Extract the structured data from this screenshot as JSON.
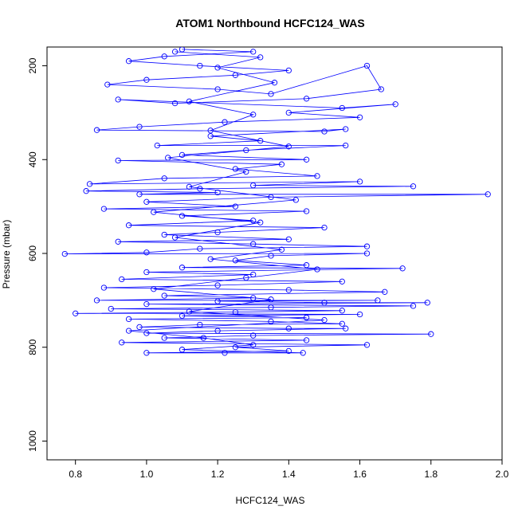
{
  "chart_data": {
    "type": "scatter",
    "title": "ATOM1 Northbound HCFC124_WAS",
    "xlabel": "HCFC124_WAS",
    "ylabel": "Pressure (mbar)",
    "xlim": [
      0.72,
      2.0
    ],
    "ylim": [
      1040,
      160
    ],
    "y_reversed": true,
    "x_ticks": [
      "0.8",
      "1.0",
      "1.2",
      "1.4",
      "1.6",
      "1.8",
      "2.0"
    ],
    "y_ticks": [
      "200",
      "400",
      "600",
      "800",
      "1000"
    ],
    "grid": false,
    "legend": "none",
    "series_color": "#0000ff",
    "point_style": "open-circle-connected",
    "series": [
      {
        "values": [
          [
            1.1,
            165
          ],
          [
            1.3,
            170
          ],
          [
            1.05,
            180
          ],
          [
            0.95,
            190
          ],
          [
            1.15,
            200
          ],
          [
            1.4,
            210
          ],
          [
            1.25,
            220
          ],
          [
            1.0,
            230
          ],
          [
            0.89,
            240
          ],
          [
            1.2,
            250
          ],
          [
            1.35,
            260
          ],
          [
            1.62,
            200
          ],
          [
            1.66,
            250
          ],
          [
            1.45,
            270
          ],
          [
            1.08,
            280
          ],
          [
            0.92,
            272
          ],
          [
            1.55,
            290
          ],
          [
            1.7,
            282
          ],
          [
            1.4,
            300
          ],
          [
            1.6,
            310
          ],
          [
            1.22,
            320
          ],
          [
            0.98,
            330
          ],
          [
            0.86,
            337
          ],
          [
            1.5,
            340
          ],
          [
            1.56,
            335
          ],
          [
            1.18,
            350
          ],
          [
            1.32,
            360
          ],
          [
            1.03,
            370
          ],
          [
            1.56,
            370
          ],
          [
            1.28,
            380
          ],
          [
            1.1,
            390
          ],
          [
            1.45,
            400
          ],
          [
            0.92,
            402
          ],
          [
            1.38,
            410
          ],
          [
            1.25,
            420
          ],
          [
            1.48,
            435
          ],
          [
            1.05,
            440
          ],
          [
            0.84,
            452
          ],
          [
            1.6,
            447
          ],
          [
            1.3,
            455
          ],
          [
            1.75,
            457
          ],
          [
            1.15,
            462
          ],
          [
            0.83,
            467
          ],
          [
            1.2,
            470
          ],
          [
            0.98,
            474
          ],
          [
            1.96,
            474
          ],
          [
            1.35,
            480
          ],
          [
            1.0,
            490
          ],
          [
            1.25,
            500
          ],
          [
            0.88,
            505
          ],
          [
            1.45,
            510
          ],
          [
            1.1,
            520
          ],
          [
            1.3,
            530
          ],
          [
            0.95,
            540
          ],
          [
            1.5,
            545
          ],
          [
            1.2,
            555
          ],
          [
            1.05,
            560
          ],
          [
            1.4,
            570
          ],
          [
            0.92,
            575
          ],
          [
            1.3,
            580
          ],
          [
            1.62,
            585
          ],
          [
            1.15,
            590
          ],
          [
            1.0,
            598
          ],
          [
            0.77,
            601
          ],
          [
            1.62,
            600
          ],
          [
            1.35,
            605
          ],
          [
            1.25,
            615
          ],
          [
            1.45,
            625
          ],
          [
            1.1,
            630
          ],
          [
            1.72,
            632
          ],
          [
            1.0,
            640
          ],
          [
            1.3,
            645
          ],
          [
            0.93,
            655
          ],
          [
            1.55,
            660
          ],
          [
            1.2,
            668
          ],
          [
            0.88,
            673
          ],
          [
            1.4,
            678
          ],
          [
            1.67,
            682
          ],
          [
            1.05,
            690
          ],
          [
            1.3,
            695
          ],
          [
            0.86,
            700
          ],
          [
            1.65,
            700
          ],
          [
            1.2,
            702
          ],
          [
            1.5,
            705
          ],
          [
            1.79,
            705
          ],
          [
            1.0,
            708
          ],
          [
            1.75,
            712
          ],
          [
            1.35,
            715
          ],
          [
            0.9,
            718
          ],
          [
            1.55,
            722
          ],
          [
            1.25,
            725
          ],
          [
            0.8,
            728
          ],
          [
            1.6,
            730
          ],
          [
            1.1,
            733
          ],
          [
            1.45,
            737
          ],
          [
            0.95,
            740
          ],
          [
            1.35,
            745
          ],
          [
            1.55,
            750
          ],
          [
            1.15,
            752
          ],
          [
            0.98,
            757
          ],
          [
            1.4,
            760
          ],
          [
            1.56,
            760
          ],
          [
            1.2,
            765
          ],
          [
            1.0,
            770
          ],
          [
            1.8,
            772
          ],
          [
            1.3,
            775
          ],
          [
            1.05,
            780
          ],
          [
            1.45,
            785
          ],
          [
            0.93,
            790
          ],
          [
            1.62,
            795
          ],
          [
            1.25,
            800
          ],
          [
            1.4,
            808
          ],
          [
            1.0,
            812
          ],
          [
            1.22,
            812
          ],
          [
            1.44,
            812
          ],
          [
            1.1,
            805
          ],
          [
            1.3,
            795
          ],
          [
            1.16,
            780
          ],
          [
            0.95,
            765
          ],
          [
            1.5,
            742
          ],
          [
            1.12,
            724
          ],
          [
            1.35,
            698
          ],
          [
            1.02,
            676
          ],
          [
            1.28,
            652
          ],
          [
            1.48,
            634
          ],
          [
            1.18,
            612
          ],
          [
            1.38,
            592
          ],
          [
            1.08,
            566
          ],
          [
            1.32,
            534
          ],
          [
            1.02,
            512
          ],
          [
            1.42,
            486
          ],
          [
            1.12,
            458
          ],
          [
            1.28,
            426
          ],
          [
            1.06,
            396
          ],
          [
            1.4,
            372
          ],
          [
            1.18,
            338
          ],
          [
            1.3,
            304
          ],
          [
            1.12,
            276
          ],
          [
            1.36,
            236
          ],
          [
            1.2,
            204
          ],
          [
            1.32,
            182
          ],
          [
            1.08,
            170
          ]
        ]
      }
    ]
  }
}
